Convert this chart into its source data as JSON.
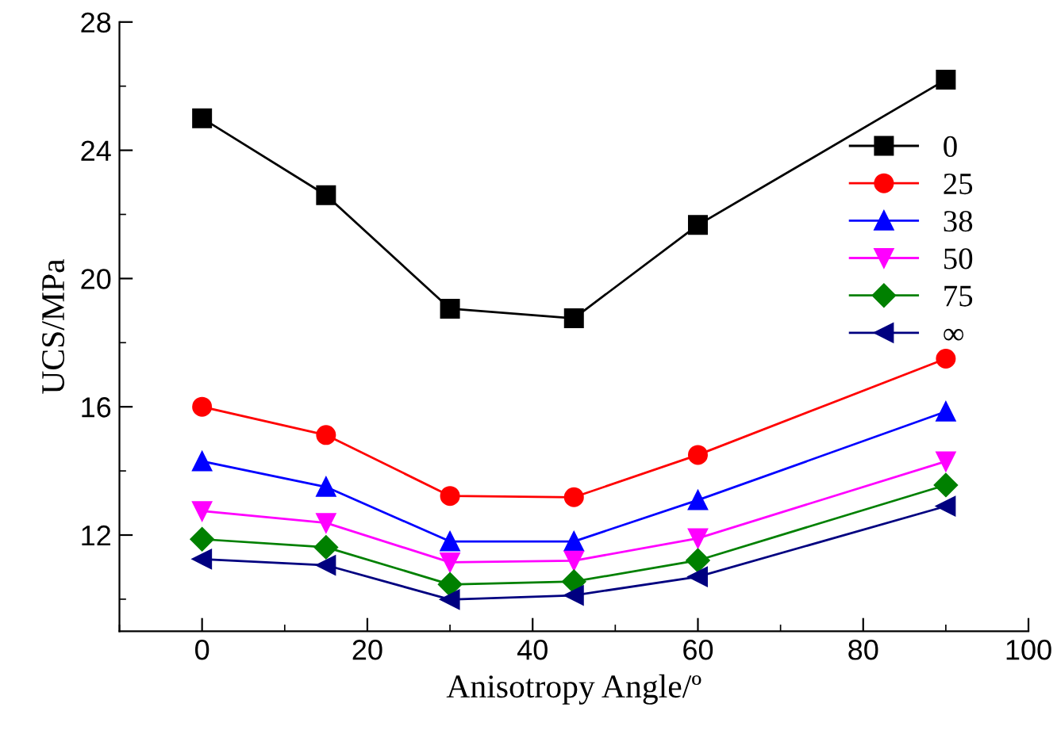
{
  "chart_data": {
    "type": "line",
    "xlabel": "Anisotropy Angle/º",
    "ylabel": "UCS/MPa",
    "x": [
      0,
      15,
      30,
      45,
      60,
      90
    ],
    "xlim": [
      -10,
      100
    ],
    "xticks": [
      0,
      20,
      40,
      60,
      80,
      100
    ],
    "ylim": [
      9,
      28
    ],
    "yticks": [
      12,
      16,
      20,
      24,
      28
    ],
    "grid": false,
    "legend": "top right",
    "line_style": "solid",
    "series": [
      {
        "name": "0",
        "color": "#000000",
        "marker": "square",
        "values": [
          25.0,
          22.6,
          19.06,
          18.76,
          21.67,
          26.2
        ]
      },
      {
        "name": "25",
        "color": "#ff0000",
        "marker": "circle",
        "values": [
          16.0,
          15.12,
          13.22,
          13.18,
          14.5,
          17.5
        ]
      },
      {
        "name": "38",
        "color": "#0000ff",
        "marker": "triangle",
        "values": [
          14.3,
          13.5,
          11.8,
          11.8,
          13.09,
          15.85
        ]
      },
      {
        "name": "50",
        "color": "#ff00ff",
        "marker": "triangle_down",
        "values": [
          12.75,
          12.38,
          11.15,
          11.2,
          11.9,
          14.3
        ]
      },
      {
        "name": "75",
        "color": "#008000",
        "marker": "diamond",
        "values": [
          11.87,
          11.62,
          10.46,
          10.55,
          11.21,
          13.56
        ]
      },
      {
        "name": "∞",
        "color": "#000080",
        "marker": "triangle_left",
        "values": [
          11.25,
          11.06,
          9.99,
          10.12,
          10.7,
          12.9
        ]
      }
    ]
  }
}
